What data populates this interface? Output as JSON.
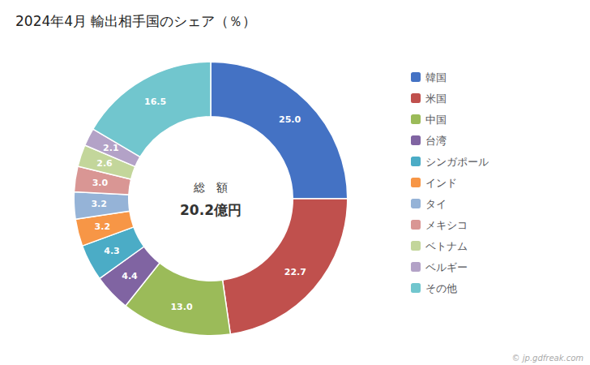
{
  "chart_data": {
    "type": "pie",
    "title": "2024年4月 輸出相手国のシェア（％）",
    "annotations": [
      "総　額",
      "20.2億円",
      "© jp.gdfreak.com"
    ],
    "categories": [
      "韓国",
      "米国",
      "中国",
      "台湾",
      "シンガポール",
      "インド",
      "タイ",
      "メキシコ",
      "ベトナム",
      "ベルギー",
      "その他"
    ],
    "values": [
      25.0,
      22.7,
      13.0,
      4.4,
      4.3,
      3.2,
      3.2,
      3.0,
      2.6,
      2.1,
      16.5
    ],
    "value_labels": [
      "25.0",
      "22.7",
      "13.0",
      "4.4",
      "4.3",
      "3.2",
      "3.2",
      "3.0",
      "2.6",
      "2.1",
      "16.5"
    ],
    "colors": [
      "#4472C4",
      "#C0504D",
      "#9BBB59",
      "#8064A2",
      "#4BACC6",
      "#F79646",
      "#95B3D7",
      "#D99694",
      "#C3D69B",
      "#B3A2C7",
      "#71C6CE"
    ],
    "data_labels": true,
    "legend": "right"
  }
}
